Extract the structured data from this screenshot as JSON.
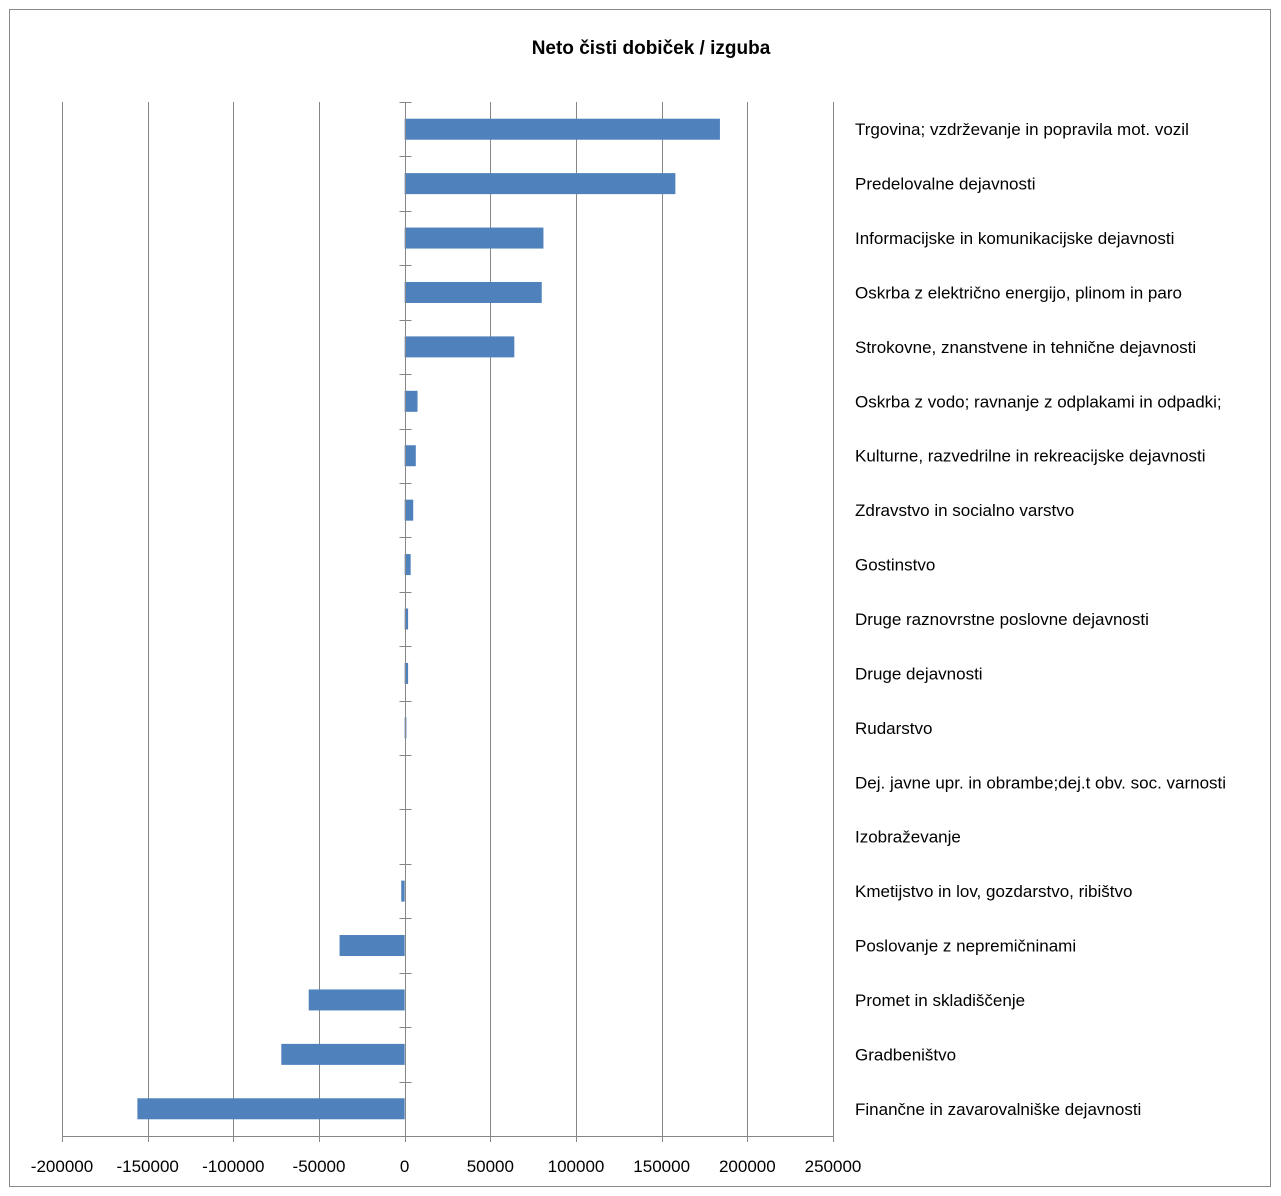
{
  "chart_data": {
    "type": "bar",
    "orientation": "horizontal",
    "title": "Neto čisti dobiček / izguba",
    "xlabel": "",
    "ylabel": "",
    "xlim": [
      -200000,
      250000
    ],
    "xticks": [
      -200000,
      -150000,
      -100000,
      -50000,
      0,
      50000,
      100000,
      150000,
      200000,
      250000
    ],
    "grid": true,
    "legend": "none",
    "bar_color": "#4f81bd",
    "categories": [
      "Trgovina; vzdrževanje in popravila mot. vozil",
      "Predelovalne dejavnosti",
      "Informacijske in komunikacijske dejavnosti",
      "Oskrba z električno energijo, plinom in paro",
      "Strokovne, znanstvene in tehnične dejavnosti",
      "Oskrba z vodo; ravnanje z odplakami in odpadki;",
      "Kulturne, razvedrilne in rekreacijske dejavnosti",
      "Zdravstvo in socialno varstvo",
      "Gostinstvo",
      "Druge raznovrstne poslovne dejavnosti",
      "Druge dejavnosti",
      "Rudarstvo",
      "Dej. javne upr. in obrambe;dej.t obv. soc. varnosti",
      "Izobraževanje",
      "Kmetijstvo in lov, gozdarstvo, ribištvo",
      "Poslovanje z nepremičninami",
      "Promet in skladiščenje",
      "Gradbeništvo",
      "Finančne in zavarovalniške dejavnosti"
    ],
    "values": [
      184000,
      158000,
      81000,
      80000,
      64000,
      7500,
      6500,
      5000,
      3500,
      2000,
      2000,
      1000,
      0,
      0,
      -2000,
      -38000,
      -56000,
      -72000,
      -156000
    ]
  }
}
